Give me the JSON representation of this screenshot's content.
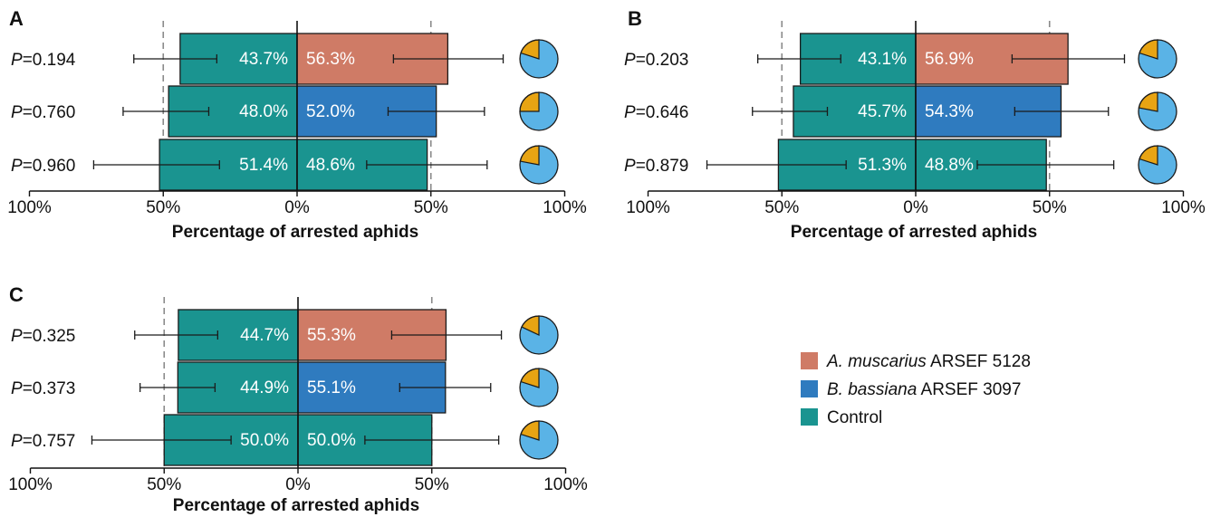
{
  "legend": {
    "items": [
      {
        "key": "amus",
        "italic": "A. muscarius",
        "rest": " ARSEF 5128",
        "color": "#cf7b66"
      },
      {
        "key": "bbas",
        "italic": "B. bassiana",
        "rest": " ARSEF 3097",
        "color": "#2f7bbf"
      },
      {
        "key": "ctrl",
        "italic": "",
        "rest": "Control",
        "color": "#1a9490"
      }
    ]
  },
  "colors": {
    "control": "#1a9490",
    "amus": "#cf7b66",
    "bbas": "#2f7bbf",
    "pie_major": "#5ab3e6",
    "pie_minor": "#e8a413"
  },
  "chart_data": [
    {
      "panel": "A",
      "type": "bar",
      "xlabel": "Percentage of arrested aphids",
      "xticks": [
        "100%",
        "50%",
        "0%",
        "50%",
        "100%"
      ],
      "xlim": [
        -100,
        100
      ],
      "reference_lines": [
        -50,
        50
      ],
      "rows": [
        {
          "p": "0.194",
          "control": 43.7,
          "treatment": 56.3,
          "treatment_key": "amus",
          "control_label": "43.7%",
          "treatment_label": "56.3%",
          "control_err": [
            -61,
            -30
          ],
          "treatment_err": [
            36,
            77
          ],
          "pie_minor_fraction": 0.2
        },
        {
          "p": "0.760",
          "control": 48.0,
          "treatment": 52.0,
          "treatment_key": "bbas",
          "control_label": "48.0%",
          "treatment_label": "52.0%",
          "control_err": [
            -65,
            -33
          ],
          "treatment_err": [
            34,
            70
          ],
          "pie_minor_fraction": 0.25
        },
        {
          "p": "0.960",
          "control": 51.4,
          "treatment": 48.6,
          "treatment_key": "ctrl",
          "control_label": "51.4%",
          "treatment_label": "48.6%",
          "control_err": [
            -76,
            -29
          ],
          "treatment_err": [
            26,
            71
          ],
          "pie_minor_fraction": 0.22
        }
      ]
    },
    {
      "panel": "B",
      "type": "bar",
      "xlabel": "Percentage of arrested aphids",
      "xticks": [
        "100%",
        "50%",
        "0%",
        "50%",
        "100%"
      ],
      "xlim": [
        -100,
        100
      ],
      "reference_lines": [
        -50,
        50
      ],
      "rows": [
        {
          "p": "0.203",
          "control": 43.1,
          "treatment": 56.9,
          "treatment_key": "amus",
          "control_label": "43.1%",
          "treatment_label": "56.9%",
          "control_err": [
            -59,
            -28
          ],
          "treatment_err": [
            36,
            78
          ],
          "pie_minor_fraction": 0.2
        },
        {
          "p": "0.646",
          "control": 45.7,
          "treatment": 54.3,
          "treatment_key": "bbas",
          "control_label": "45.7%",
          "treatment_label": "54.3%",
          "control_err": [
            -61,
            -33
          ],
          "treatment_err": [
            37,
            72
          ],
          "pie_minor_fraction": 0.22
        },
        {
          "p": "0.879",
          "control": 51.3,
          "treatment": 48.8,
          "treatment_key": "ctrl",
          "control_label": "51.3%",
          "treatment_label": "48.8%",
          "control_err": [
            -78,
            -26
          ],
          "treatment_err": [
            23,
            74
          ],
          "pie_minor_fraction": 0.2
        }
      ]
    },
    {
      "panel": "C",
      "type": "bar",
      "xlabel": "Percentage of arrested aphids",
      "xticks": [
        "100%",
        "50%",
        "0%",
        "50%",
        "100%"
      ],
      "xlim": [
        -100,
        100
      ],
      "reference_lines": [
        -50,
        50
      ],
      "rows": [
        {
          "p": "0.325",
          "control": 44.7,
          "treatment": 55.3,
          "treatment_key": "amus",
          "control_label": "44.7%",
          "treatment_label": "55.3%",
          "control_err": [
            -61,
            -30
          ],
          "treatment_err": [
            35,
            76
          ],
          "pie_minor_fraction": 0.18
        },
        {
          "p": "0.373",
          "control": 44.9,
          "treatment": 55.1,
          "treatment_key": "bbas",
          "control_label": "44.9%",
          "treatment_label": "55.1%",
          "control_err": [
            -59,
            -31
          ],
          "treatment_err": [
            38,
            72
          ],
          "pie_minor_fraction": 0.2
        },
        {
          "p": "0.757",
          "control": 50.0,
          "treatment": 50.0,
          "treatment_key": "ctrl",
          "control_label": "50.0%",
          "treatment_label": "50.0%",
          "control_err": [
            -77,
            -25
          ],
          "treatment_err": [
            25,
            75
          ],
          "pie_minor_fraction": 0.2
        }
      ]
    }
  ]
}
